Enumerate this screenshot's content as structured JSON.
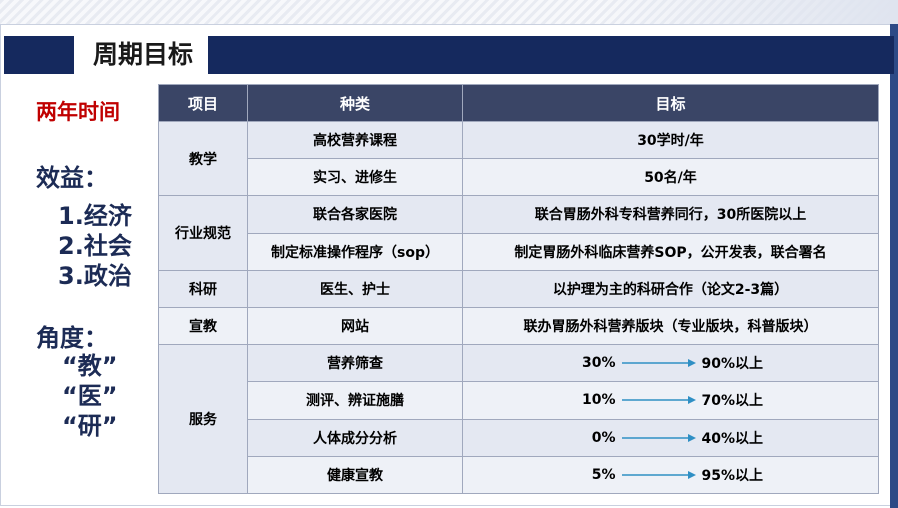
{
  "title": "周期目标",
  "side": {
    "duration": "两年时间",
    "benefit_heading": "效益：",
    "benefits": [
      "1.经济",
      "2.社会",
      "3.政治"
    ],
    "angle_heading": "角度：",
    "angles": [
      "“教”",
      "“医”",
      "“研”"
    ]
  },
  "table": {
    "headers": [
      "项目",
      "种类",
      "目标"
    ],
    "rows": [
      {
        "project": "教学",
        "kind": "高校营养课程",
        "goal": "30学时/年"
      },
      {
        "kind": "实习、进修生",
        "goal": "50名/年"
      },
      {
        "project": "行业规范",
        "kind": "联合各家医院",
        "goal": "联合胃肠外科专科营养同行，30所医院以上"
      },
      {
        "kind": "制定标准操作程序（sop）",
        "goal": "制定胃肠外科临床营养SOP，公开发表，联合署名"
      },
      {
        "project": "科研",
        "kind": "医生、护士",
        "goal": "以护理为主的科研合作（论文2-3篇）"
      },
      {
        "project": "宣教",
        "kind": "网站",
        "goal": "联办胃肠外科营养版块（专业版块，科普版块）"
      },
      {
        "project": "服务",
        "kind": "营养筛查",
        "from": "30%",
        "to": "90%以上"
      },
      {
        "kind": "测评、辨证施膳",
        "from": "10%",
        "to": "70%以上"
      },
      {
        "kind": "人体成分分析",
        "from": "0%",
        "to": "40%以上"
      },
      {
        "kind": "健康宣教",
        "from": "5%",
        "to": "95%以上"
      }
    ]
  },
  "colors": {
    "title_bar": "#15295e",
    "header_bg": "#3a4566",
    "cell_bg": "#e4e8f2",
    "arrow": "#2f8fc4",
    "red_text": "#c00000"
  }
}
